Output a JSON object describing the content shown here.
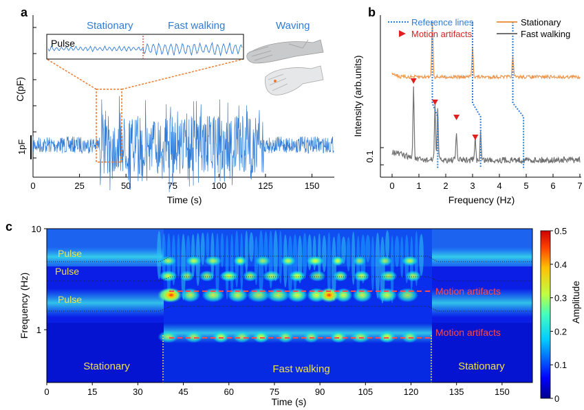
{
  "panels": {
    "a": {
      "letter": "a",
      "ylabel": "C(pF)",
      "xlabel": "Time (s)",
      "scale_bar_label": "1pF",
      "inset_label": "Pulse",
      "segments": [
        "Stationary",
        "Fast walking",
        "Waving"
      ],
      "colors": {
        "trace": "#2f7bd6",
        "segment_text": "#2f7bd6",
        "highlight": "#ee7a2f"
      }
    },
    "b": {
      "letter": "b",
      "ylabel": "Intensity (arb.units)",
      "xlabel": "Frequency (Hz)",
      "scale_label": "0.1",
      "legend": {
        "reference_lines": "Reference lines",
        "motion_artifacts": "Motion artifacts",
        "stationary": "Stationary",
        "fast_walking": "Fast walking"
      },
      "colors": {
        "stationary": "#f0964a",
        "fast_walking": "#707070",
        "reference": "#2f7bd6",
        "artifact": "#e02020"
      }
    },
    "c": {
      "letter": "c",
      "ylabel": "Frequency (Hz)",
      "xlabel": "Time (s)",
      "colorbar_label": "Amplitude",
      "region_labels": [
        "Stationary",
        "Fast walking",
        "Stationary"
      ],
      "pulse_labels": [
        "Pulse",
        "Pulse",
        "Pulse"
      ],
      "artifact_labels": [
        "Motion artifacts",
        "Motion artifacts"
      ],
      "colors": {
        "label": "#f2e24a",
        "artifact_label": "#ff4a4a",
        "artifact_line": "#ff4a4a"
      }
    }
  },
  "chart_data": [
    {
      "panel": "a",
      "type": "line",
      "xlabel": "Time (s)",
      "ylabel": "C(pF)",
      "xlim": [
        0,
        162
      ],
      "xticks": [
        0,
        25,
        50,
        75,
        100,
        125,
        150
      ],
      "segments": [
        {
          "label": "Stationary",
          "x_range": [
            0,
            36
          ]
        },
        {
          "label": "Fast walking",
          "x_range": [
            36,
            124
          ]
        },
        {
          "label": "Waving",
          "x_range": [
            124,
            162
          ]
        }
      ],
      "highlight_window": [
        34,
        48
      ],
      "amplitude_pF": {
        "stationary": 0.35,
        "fast_walking": 1.2
      }
    },
    {
      "panel": "b",
      "type": "line",
      "xlabel": "Frequency (Hz)",
      "ylabel": "Intensity (arb.units)",
      "xlim": [
        0,
        7
      ],
      "xticks": [
        0,
        1,
        2,
        3,
        4,
        5,
        6,
        7
      ],
      "series": [
        {
          "name": "Stationary",
          "peaks_hz": [
            1.5,
            3.0,
            4.5
          ]
        },
        {
          "name": "Fast walking",
          "peaks_hz": [
            0.8,
            1.6,
            1.7,
            2.4,
            3.1,
            3.3
          ]
        }
      ],
      "reference_lines": [
        [
          1.5,
          1.7
        ],
        [
          3.0,
          3.3
        ],
        [
          4.5,
          4.9
        ]
      ],
      "motion_artifacts_hz": [
        0.8,
        1.6,
        2.4,
        3.1
      ]
    },
    {
      "panel": "c",
      "type": "heatmap",
      "xlabel": "Time (s)",
      "ylabel": "Frequency (Hz)",
      "xlim": [
        0,
        160
      ],
      "xticks": [
        0,
        15,
        30,
        45,
        60,
        75,
        90,
        105,
        120,
        135,
        150
      ],
      "y_scale": "log",
      "ylim": [
        0.3,
        10
      ],
      "yticks": [
        1,
        10
      ],
      "colorbar": {
        "label": "Amplitude",
        "range": [
          0,
          0.5
        ],
        "ticks": [
          0,
          0.1,
          0.2,
          0.3,
          0.4,
          0.5
        ]
      },
      "regions": [
        {
          "label": "Stationary",
          "x_range": [
            0,
            36
          ]
        },
        {
          "label": "Fast walking",
          "x_range": [
            36,
            124
          ]
        },
        {
          "label": "Stationary",
          "x_range": [
            124,
            160
          ]
        }
      ],
      "motion_artifact_freqs_hz": [
        2.9,
        0.85
      ]
    }
  ]
}
